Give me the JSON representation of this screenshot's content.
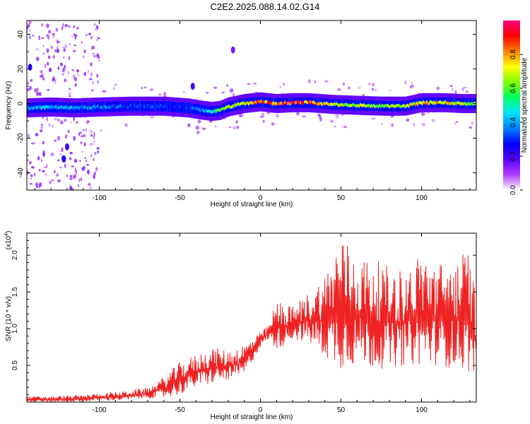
{
  "figure": {
    "title": "C2E2.2025.088.14.02.G14"
  },
  "top_panel": {
    "xlabel": "Height of straight line (km)",
    "ylabel": "Frequency (Hz)"
  },
  "bottom_panel": {
    "xlabel": "Height of straight line (km)",
    "ylabel": "SNR (10 * v/v)",
    "scale_base": "(x10",
    "scale_exponent": "4",
    "scale_close": ")"
  },
  "colorbar": {
    "label": "Normalized spectral amplitude",
    "range": [
      0,
      1
    ],
    "tick_labels": [
      "0.0",
      "0.2",
      "0.4",
      "0.6",
      "0.8"
    ],
    "tick_values": [
      0.0,
      0.2,
      0.4,
      0.6,
      0.8
    ],
    "colormap": [
      "#ffffff",
      "#b03cff",
      "#5a00ff",
      "#0000ff",
      "#0080ff",
      "#00e0ff",
      "#00ff60",
      "#80ff00",
      "#ffff00",
      "#ff8000",
      "#ff0000",
      "#ff0080"
    ]
  },
  "chart_data": [
    {
      "type": "heatmap",
      "title": "C2E2.2025.088.14.02.G14",
      "xlabel": "Height of straight line (km)",
      "ylabel": "Frequency (Hz)",
      "xlim": [
        -145,
        134
      ],
      "ylim": [
        -50,
        48
      ],
      "x_ticks": [
        -100,
        -50,
        0,
        50,
        100
      ],
      "x_tick_labels": [
        "-100",
        "-50",
        "0",
        "50",
        "100"
      ],
      "y_ticks": [
        -40,
        -20,
        0,
        20,
        40
      ],
      "y_tick_labels": [
        "-40",
        "-20",
        "0",
        "20",
        "40"
      ],
      "colorbar_label": "Normalized spectral amplitude",
      "ridge": {
        "x": [
          -145,
          -130,
          -115,
          -100,
          -80,
          -60,
          -45,
          -35,
          -30,
          -25,
          -20,
          -10,
          0,
          10,
          20,
          30,
          45,
          60,
          75,
          90,
          100,
          115,
          125,
          134
        ],
        "frequency": [
          -2.5,
          -2,
          -2.5,
          -2,
          -1.5,
          -1.5,
          -2.5,
          -4,
          -4.5,
          -4,
          -2,
          0,
          1,
          0,
          0.5,
          0.5,
          -0.5,
          -1,
          -1.5,
          -1.5,
          0.5,
          0.5,
          0,
          0
        ],
        "amplitude": [
          0.45,
          0.45,
          0.42,
          0.4,
          0.35,
          0.32,
          0.32,
          0.4,
          0.55,
          0.65,
          0.7,
          0.72,
          0.95,
          0.92,
          0.95,
          0.9,
          0.78,
          0.72,
          0.7,
          0.72,
          0.85,
          0.8,
          0.75,
          0.72
        ]
      },
      "scattered_features": [
        {
          "x": -143,
          "frequency": 21,
          "amplitude": 0.22
        },
        {
          "x": -122,
          "frequency": -32,
          "amplitude": 0.25
        },
        {
          "x": -120,
          "frequency": -25,
          "amplitude": 0.2
        },
        {
          "x": -42,
          "frequency": 10,
          "amplitude": 0.2
        },
        {
          "x": -17,
          "frequency": 31,
          "amplitude": 0.15
        }
      ]
    },
    {
      "type": "line",
      "xlabel": "Height of straight line (km)",
      "ylabel": "SNR (10 * v/v)",
      "y_scale": "x10^4",
      "xlim": [
        -145,
        134
      ],
      "ylim": [
        0,
        2.3
      ],
      "x_ticks": [
        -100,
        -50,
        0,
        50,
        100
      ],
      "x_tick_labels": [
        "-100",
        "-50",
        "0",
        "50",
        "100"
      ],
      "y_ticks": [
        0.5,
        1.0,
        1.5,
        2.0
      ],
      "y_tick_labels": [
        "0.5",
        "1.0",
        "1.5",
        "2.0"
      ],
      "color": "#ee2222",
      "envelope": {
        "x": [
          -145,
          -130,
          -110,
          -100,
          -85,
          -70,
          -60,
          -50,
          -40,
          -30,
          -20,
          -10,
          0,
          5,
          10,
          20,
          30,
          40,
          50,
          60,
          70,
          80,
          90,
          100,
          110,
          120,
          130,
          134
        ],
        "low": [
          0.0,
          0.0,
          0.0,
          0.02,
          0.02,
          0.05,
          0.05,
          0.1,
          0.2,
          0.25,
          0.3,
          0.35,
          0.75,
          0.85,
          0.7,
          0.85,
          0.8,
          0.6,
          0.45,
          0.5,
          0.45,
          0.45,
          0.5,
          0.5,
          0.5,
          0.45,
          0.4,
          0.3
        ],
        "high": [
          0.08,
          0.08,
          0.1,
          0.12,
          0.15,
          0.2,
          0.35,
          0.55,
          0.65,
          0.75,
          0.7,
          0.8,
          0.95,
          1.05,
          1.4,
          1.3,
          1.5,
          1.75,
          2.3,
          2.0,
          1.95,
          1.85,
          1.8,
          2.05,
          1.9,
          1.95,
          2.1,
          1.4
        ]
      }
    }
  ]
}
